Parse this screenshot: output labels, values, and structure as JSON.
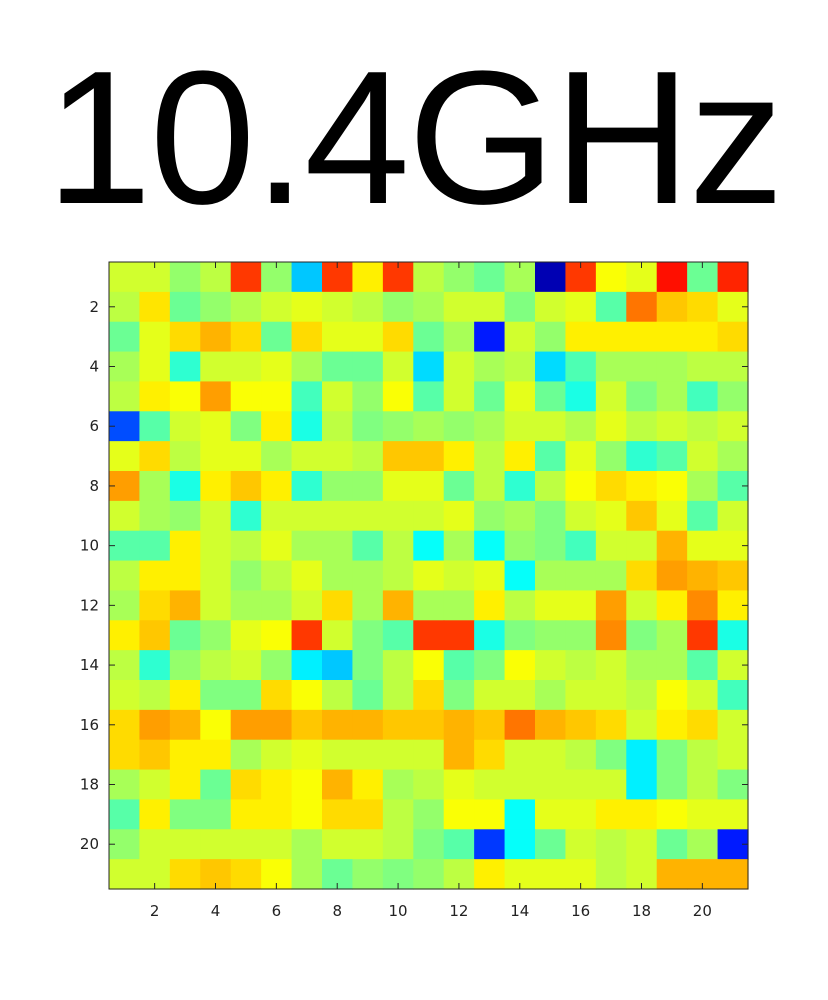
{
  "chart_data": {
    "type": "heatmap",
    "title": "10.4GHz",
    "xlabel": "",
    "ylabel": "",
    "xlim": [
      0.5,
      21.5
    ],
    "ylim": [
      21.5,
      0.5
    ],
    "x_ticks": [
      2,
      4,
      6,
      8,
      10,
      12,
      14,
      16,
      18,
      20
    ],
    "y_ticks": [
      2,
      4,
      6,
      8,
      10,
      12,
      14,
      16,
      18,
      20
    ],
    "x_tick_labels": [
      "2",
      "4",
      "6",
      "8",
      "10",
      "12",
      "14",
      "16",
      "18",
      "20"
    ],
    "y_tick_labels": [
      "2",
      "4",
      "6",
      "8",
      "10",
      "12",
      "14",
      "16",
      "18",
      "20"
    ],
    "colormap": "jet",
    "clim": [
      0,
      1
    ],
    "grid": false,
    "values": [
      [
        0.58,
        0.58,
        0.52,
        0.56,
        0.82,
        0.52,
        0.32,
        0.82,
        0.64,
        0.82,
        0.56,
        0.52,
        0.48,
        0.54,
        0.05,
        0.82,
        0.62,
        0.6,
        0.86,
        0.48,
        0.84
      ],
      [
        0.56,
        0.65,
        0.48,
        0.52,
        0.55,
        0.58,
        0.6,
        0.58,
        0.56,
        0.52,
        0.54,
        0.58,
        0.58,
        0.5,
        0.58,
        0.6,
        0.46,
        0.76,
        0.68,
        0.66,
        0.6
      ],
      [
        0.48,
        0.6,
        0.66,
        0.7,
        0.66,
        0.48,
        0.66,
        0.6,
        0.6,
        0.66,
        0.48,
        0.54,
        0.15,
        0.58,
        0.52,
        0.64,
        0.64,
        0.64,
        0.64,
        0.64,
        0.66
      ],
      [
        0.54,
        0.6,
        0.42,
        0.58,
        0.58,
        0.6,
        0.54,
        0.48,
        0.48,
        0.58,
        0.34,
        0.58,
        0.54,
        0.56,
        0.34,
        0.45,
        0.54,
        0.54,
        0.54,
        0.56,
        0.56
      ],
      [
        0.56,
        0.64,
        0.62,
        0.72,
        0.62,
        0.62,
        0.44,
        0.58,
        0.52,
        0.62,
        0.46,
        0.58,
        0.48,
        0.6,
        0.48,
        0.4,
        0.58,
        0.5,
        0.54,
        0.44,
        0.52
      ],
      [
        0.2,
        0.46,
        0.58,
        0.6,
        0.5,
        0.64,
        0.4,
        0.56,
        0.5,
        0.52,
        0.54,
        0.52,
        0.54,
        0.58,
        0.58,
        0.55,
        0.6,
        0.56,
        0.58,
        0.56,
        0.58
      ],
      [
        0.6,
        0.66,
        0.56,
        0.6,
        0.6,
        0.54,
        0.58,
        0.58,
        0.56,
        0.68,
        0.68,
        0.64,
        0.56,
        0.64,
        0.46,
        0.6,
        0.52,
        0.42,
        0.46,
        0.58,
        0.54
      ],
      [
        0.72,
        0.54,
        0.4,
        0.64,
        0.68,
        0.64,
        0.42,
        0.52,
        0.52,
        0.6,
        0.6,
        0.48,
        0.56,
        0.42,
        0.56,
        0.62,
        0.66,
        0.64,
        0.62,
        0.54,
        0.46
      ],
      [
        0.58,
        0.54,
        0.52,
        0.58,
        0.42,
        0.58,
        0.58,
        0.58,
        0.58,
        0.58,
        0.58,
        0.6,
        0.52,
        0.54,
        0.5,
        0.58,
        0.6,
        0.68,
        0.6,
        0.46,
        0.58
      ],
      [
        0.46,
        0.46,
        0.64,
        0.58,
        0.56,
        0.6,
        0.54,
        0.54,
        0.46,
        0.56,
        0.38,
        0.54,
        0.38,
        0.52,
        0.5,
        0.44,
        0.58,
        0.58,
        0.7,
        0.6,
        0.6
      ],
      [
        0.56,
        0.64,
        0.64,
        0.58,
        0.52,
        0.56,
        0.6,
        0.54,
        0.54,
        0.56,
        0.6,
        0.58,
        0.6,
        0.38,
        0.54,
        0.54,
        0.54,
        0.66,
        0.72,
        0.7,
        0.68
      ],
      [
        0.54,
        0.66,
        0.7,
        0.58,
        0.54,
        0.54,
        0.58,
        0.66,
        0.54,
        0.7,
        0.54,
        0.54,
        0.64,
        0.56,
        0.6,
        0.6,
        0.72,
        0.58,
        0.64,
        0.74,
        0.64
      ],
      [
        0.64,
        0.68,
        0.48,
        0.52,
        0.6,
        0.62,
        0.82,
        0.58,
        0.5,
        0.46,
        0.82,
        0.82,
        0.4,
        0.5,
        0.52,
        0.52,
        0.74,
        0.5,
        0.54,
        0.82,
        0.4
      ],
      [
        0.56,
        0.42,
        0.52,
        0.56,
        0.58,
        0.52,
        0.36,
        0.32,
        0.5,
        0.56,
        0.62,
        0.46,
        0.5,
        0.62,
        0.58,
        0.56,
        0.58,
        0.54,
        0.54,
        0.46,
        0.58
      ],
      [
        0.58,
        0.56,
        0.64,
        0.5,
        0.5,
        0.66,
        0.62,
        0.56,
        0.48,
        0.56,
        0.66,
        0.5,
        0.58,
        0.58,
        0.54,
        0.58,
        0.58,
        0.56,
        0.62,
        0.58,
        0.44
      ],
      [
        0.66,
        0.72,
        0.7,
        0.62,
        0.72,
        0.72,
        0.68,
        0.7,
        0.7,
        0.68,
        0.68,
        0.7,
        0.68,
        0.76,
        0.7,
        0.68,
        0.66,
        0.58,
        0.64,
        0.66,
        0.58
      ],
      [
        0.66,
        0.68,
        0.64,
        0.64,
        0.54,
        0.58,
        0.6,
        0.58,
        0.58,
        0.58,
        0.58,
        0.7,
        0.66,
        0.58,
        0.58,
        0.56,
        0.5,
        0.36,
        0.5,
        0.56,
        0.58
      ],
      [
        0.54,
        0.58,
        0.64,
        0.48,
        0.66,
        0.64,
        0.62,
        0.7,
        0.64,
        0.54,
        0.56,
        0.6,
        0.58,
        0.58,
        0.58,
        0.58,
        0.58,
        0.36,
        0.5,
        0.56,
        0.5
      ],
      [
        0.46,
        0.64,
        0.5,
        0.5,
        0.64,
        0.64,
        0.62,
        0.66,
        0.66,
        0.56,
        0.52,
        0.62,
        0.62,
        0.38,
        0.6,
        0.6,
        0.64,
        0.64,
        0.62,
        0.6,
        0.6
      ],
      [
        0.52,
        0.58,
        0.58,
        0.58,
        0.58,
        0.58,
        0.54,
        0.58,
        0.58,
        0.56,
        0.5,
        0.46,
        0.18,
        0.38,
        0.48,
        0.58,
        0.56,
        0.58,
        0.48,
        0.54,
        0.15
      ],
      [
        0.58,
        0.58,
        0.66,
        0.68,
        0.66,
        0.62,
        0.54,
        0.48,
        0.52,
        0.5,
        0.52,
        0.56,
        0.64,
        0.6,
        0.6,
        0.6,
        0.56,
        0.58,
        0.7,
        0.7,
        0.7
      ]
    ]
  }
}
